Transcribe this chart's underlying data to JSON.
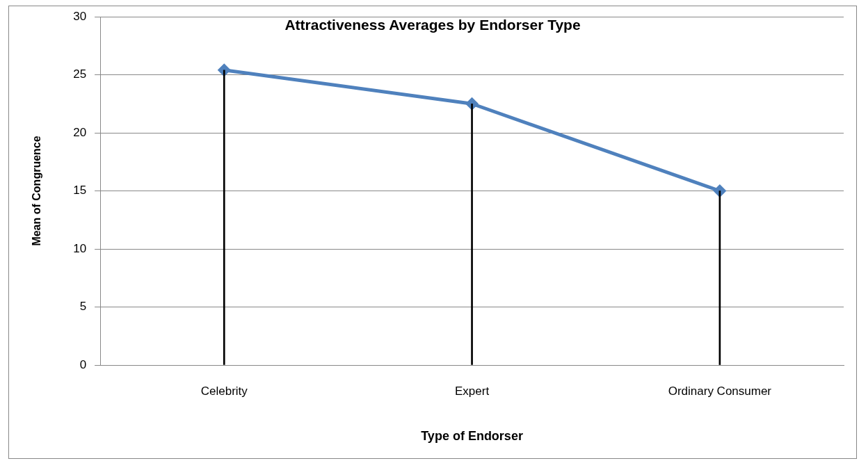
{
  "chart_data": {
    "type": "line",
    "title": "Attractiveness Averages by Endorser Type",
    "xlabel": "Type of Endorser",
    "ylabel": "Mean of Congruence",
    "categories": [
      "Celebrity",
      "Expert",
      "Ordinary Consumer"
    ],
    "series": [
      {
        "type": "bar",
        "color": "#000000",
        "values": [
          25.4,
          22.5,
          15
        ]
      },
      {
        "color": "#4f81bd",
        "values": [
          25.4,
          22.5,
          15
        ],
        "marker": "diamond"
      }
    ],
    "ylim": [
      0,
      30
    ],
    "yticks": [
      0,
      5,
      10,
      15,
      20,
      25,
      30
    ],
    "grid": "y",
    "legend": false
  }
}
